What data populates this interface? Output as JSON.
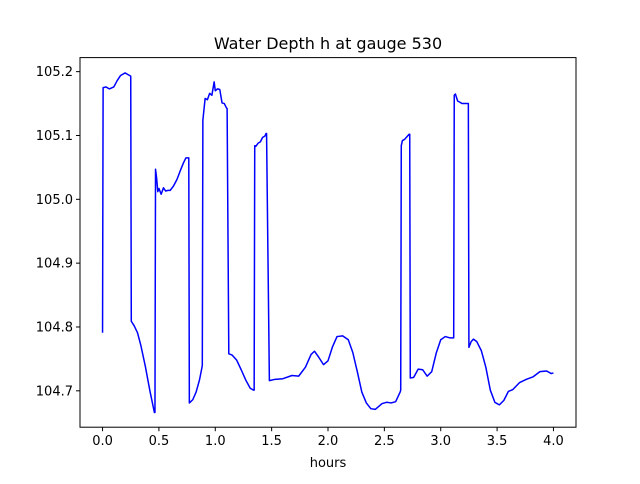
{
  "chart_data": {
    "type": "line",
    "title": "Water Depth h at gauge 530",
    "xlabel": "hours",
    "ylabel": "",
    "xlim": [
      -0.2,
      4.2
    ],
    "ylim": [
      104.643,
      105.222
    ],
    "xticks": [
      0.0,
      0.5,
      1.0,
      1.5,
      2.0,
      2.5,
      3.0,
      3.5,
      4.0
    ],
    "xtick_labels": [
      "0.0",
      "0.5",
      "1.0",
      "1.5",
      "2.0",
      "2.5",
      "3.0",
      "3.5",
      "4.0"
    ],
    "yticks": [
      104.7,
      104.8,
      104.9,
      105.0,
      105.1,
      105.2
    ],
    "ytick_labels": [
      "104.7",
      "104.8",
      "104.9",
      "105.0",
      "105.1",
      "105.2"
    ],
    "grid": false,
    "legend": null,
    "series": [
      {
        "color": "#0000ff",
        "x": [
          0.0,
          0.005,
          0.03,
          0.06,
          0.1,
          0.13,
          0.16,
          0.2,
          0.23,
          0.25,
          0.255,
          0.28,
          0.31,
          0.34,
          0.38,
          0.42,
          0.46,
          0.465,
          0.47,
          0.48,
          0.49,
          0.5,
          0.52,
          0.54,
          0.56,
          0.58,
          0.6,
          0.63,
          0.66,
          0.69,
          0.72,
          0.74,
          0.765,
          0.77,
          0.8,
          0.83,
          0.86,
          0.88,
          0.885,
          0.89,
          0.91,
          0.93,
          0.95,
          0.97,
          0.99,
          1.0,
          1.02,
          1.04,
          1.06,
          1.08,
          1.1,
          1.105,
          1.12,
          1.15,
          1.19,
          1.23,
          1.27,
          1.31,
          1.34,
          1.345,
          1.35,
          1.36,
          1.38,
          1.4,
          1.42,
          1.44,
          1.45,
          1.455,
          1.48,
          1.53,
          1.6,
          1.68,
          1.74,
          1.8,
          1.85,
          1.88,
          1.92,
          1.96,
          2.0,
          2.04,
          2.08,
          2.13,
          2.18,
          2.22,
          2.26,
          2.3,
          2.34,
          2.38,
          2.42,
          2.48,
          2.52,
          2.56,
          2.6,
          2.64,
          2.645,
          2.65,
          2.66,
          2.68,
          2.7,
          2.72,
          2.725,
          2.73,
          2.76,
          2.8,
          2.84,
          2.88,
          2.92,
          2.96,
          3.0,
          3.04,
          3.08,
          3.11,
          3.115,
          3.12,
          3.13,
          3.15,
          3.17,
          3.19,
          3.22,
          3.24,
          3.245,
          3.25,
          3.27,
          3.29,
          3.32,
          3.36,
          3.4,
          3.44,
          3.48,
          3.52,
          3.56,
          3.6,
          3.64,
          3.7,
          3.76,
          3.82,
          3.88,
          3.94,
          3.98,
          4.0
        ],
        "y": [
          104.791,
          105.175,
          105.176,
          105.173,
          105.176,
          105.186,
          105.194,
          105.198,
          105.195,
          105.193,
          104.809,
          104.802,
          104.791,
          104.771,
          104.738,
          104.7,
          104.666,
          104.666,
          105.047,
          105.033,
          105.012,
          105.017,
          105.008,
          105.018,
          105.013,
          105.014,
          105.014,
          105.021,
          105.031,
          105.045,
          105.058,
          105.065,
          105.065,
          104.681,
          104.686,
          104.698,
          104.717,
          104.735,
          104.74,
          105.124,
          105.158,
          105.156,
          105.166,
          105.163,
          105.184,
          105.17,
          105.173,
          105.172,
          105.151,
          105.15,
          105.143,
          105.142,
          104.758,
          104.756,
          104.748,
          104.733,
          104.717,
          104.704,
          104.701,
          104.701,
          105.084,
          105.083,
          105.088,
          105.09,
          105.097,
          105.099,
          105.103,
          105.103,
          104.716,
          104.718,
          104.719,
          104.724,
          104.723,
          104.737,
          104.757,
          104.762,
          104.752,
          104.741,
          104.747,
          104.769,
          104.785,
          104.786,
          104.78,
          104.76,
          104.73,
          104.698,
          104.681,
          104.672,
          104.671,
          104.68,
          104.682,
          104.681,
          104.683,
          104.698,
          104.701,
          105.084,
          105.092,
          105.094,
          105.098,
          105.102,
          105.102,
          104.72,
          104.721,
          104.734,
          104.733,
          104.723,
          104.73,
          104.759,
          104.78,
          104.785,
          104.783,
          104.783,
          104.783,
          105.163,
          105.165,
          105.154,
          105.152,
          105.15,
          105.15,
          105.15,
          105.15,
          104.768,
          104.777,
          104.781,
          104.777,
          104.763,
          104.737,
          104.701,
          104.682,
          104.678,
          104.685,
          104.699,
          104.702,
          104.713,
          104.718,
          104.722,
          104.73,
          104.731,
          104.727,
          104.728
        ]
      }
    ]
  }
}
